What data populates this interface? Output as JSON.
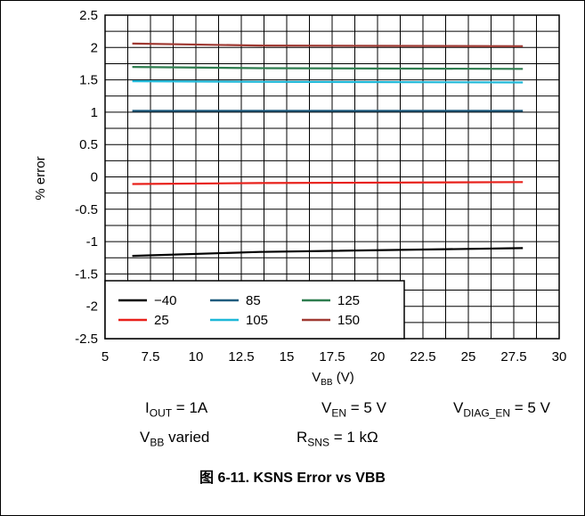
{
  "chart_data": {
    "type": "line",
    "ylabel": "% error",
    "xlabel_main": "V",
    "xlabel_sub": "BB",
    "xlabel_unit": " (V)",
    "xlim": [
      5,
      30
    ],
    "ylim": [
      -2.5,
      2.5
    ],
    "xticks": [
      "5",
      "7.5",
      "10",
      "12.5",
      "15",
      "17.5",
      "20",
      "22.5",
      "25",
      "27.5",
      "30"
    ],
    "xtick_values": [
      5,
      7.5,
      10,
      12.5,
      15,
      17.5,
      20,
      22.5,
      25,
      27.5,
      30
    ],
    "yticks": [
      "2.5",
      "2",
      "1.5",
      "1",
      "0.5",
      "0",
      "-0.5",
      "-1",
      "-1.5",
      "-2",
      "-2.5"
    ],
    "ytick_values": [
      2.5,
      2,
      1.5,
      1,
      0.5,
      0,
      -0.5,
      -1,
      -1.5,
      -2,
      -2.5
    ],
    "x_minor_step": 1.25,
    "y_minor_step": 0.25,
    "grid": true,
    "legend_position": "bottom-left",
    "series": [
      {
        "name": "-40",
        "legend_text": "−40",
        "color": "#000000",
        "x": [
          6.5,
          13.5,
          28
        ],
        "y": [
          -1.22,
          -1.16,
          -1.1
        ]
      },
      {
        "name": "25",
        "legend_text": "25",
        "color": "#e8211b",
        "x": [
          6.5,
          13.5,
          28
        ],
        "y": [
          -0.11,
          -0.095,
          -0.08
        ]
      },
      {
        "name": "85",
        "legend_text": "85",
        "color": "#1f5b7e",
        "x": [
          6.5,
          13.5,
          28
        ],
        "y": [
          1.02,
          1.02,
          1.02
        ]
      },
      {
        "name": "105",
        "legend_text": "105",
        "color": "#1eb8d8",
        "x": [
          6.5,
          13.5,
          28
        ],
        "y": [
          1.48,
          1.47,
          1.46
        ]
      },
      {
        "name": "125",
        "legend_text": "125",
        "color": "#2e7d4f",
        "x": [
          6.5,
          13.5,
          28
        ],
        "y": [
          1.7,
          1.68,
          1.67
        ]
      },
      {
        "name": "150",
        "legend_text": "150",
        "color": "#a03a33",
        "x": [
          6.5,
          13.5,
          28
        ],
        "y": [
          2.06,
          2.03,
          2.02
        ]
      }
    ]
  },
  "conditions": {
    "iout_main": "I",
    "iout_sub": "OUT",
    "iout_value": " = 1A",
    "ven_main": "V",
    "ven_sub": "EN",
    "ven_value": " = 5 V",
    "vdiag_main": "V",
    "vdiag_sub": "DIAG_EN",
    "vdiag_value": " = 5 V",
    "vbb_main": "V",
    "vbb_sub": "BB",
    "vbb_value": " varied",
    "rsns_main": "R",
    "rsns_sub": "SNS",
    "rsns_value": " = 1 kΩ"
  },
  "caption": "图 6-11. KSNS Error vs VBB"
}
